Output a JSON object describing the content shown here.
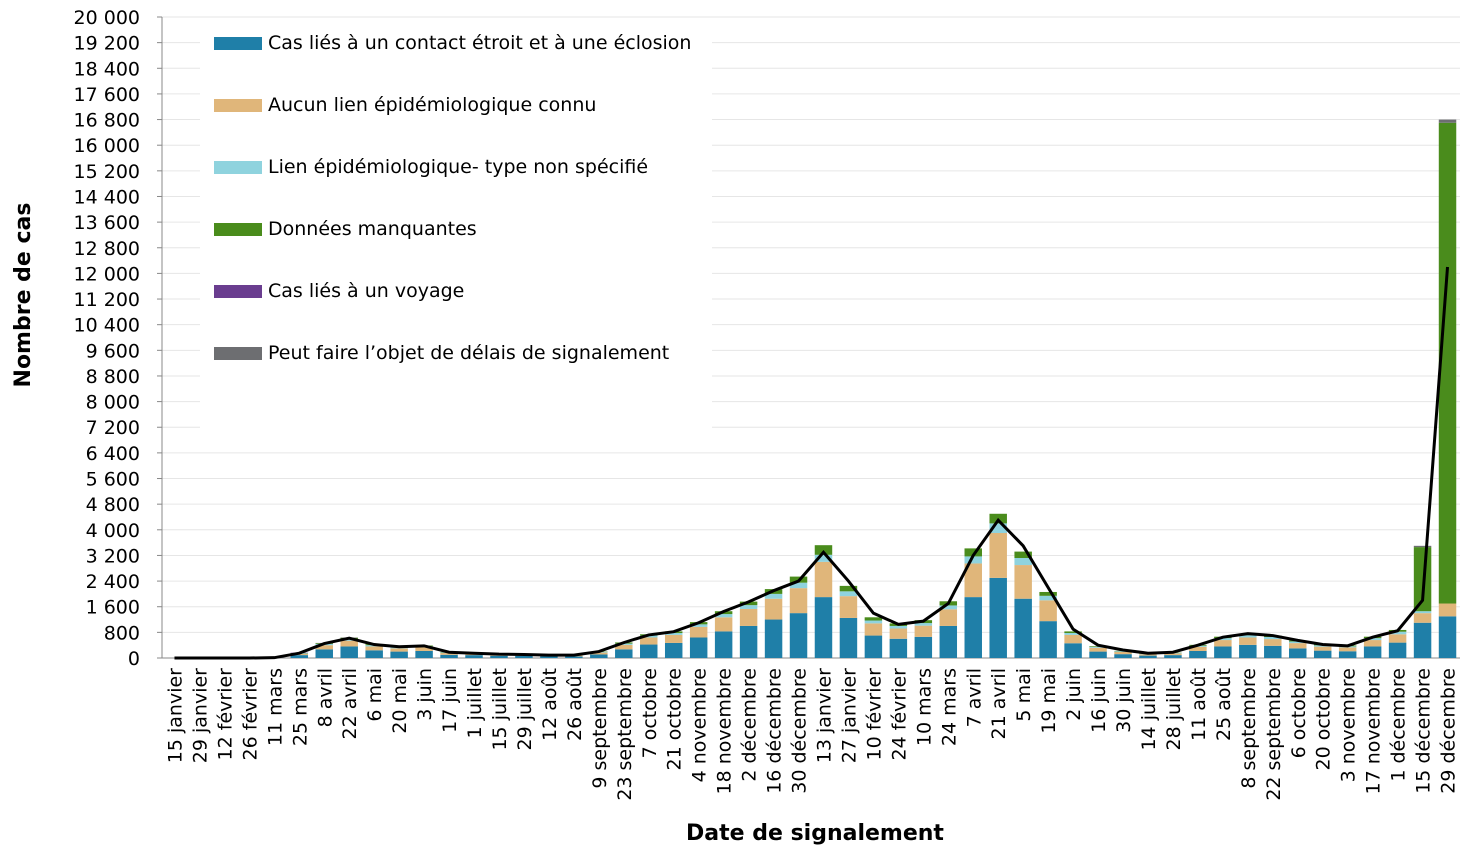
{
  "chart_data": {
    "type": "bar",
    "stacked": true,
    "grid": true,
    "x_label": "Date de signalement",
    "y_label": "Nombre de cas",
    "categories": [
      "15 janvier",
      "29 janvier",
      "12 février",
      "26 février",
      "11 mars",
      "25 mars",
      "8 avril",
      "22 avril",
      "6 mai",
      "20 mai",
      "3 juin",
      "17 juin",
      "1 juillet",
      "15 juillet",
      "29 juillet",
      "12 août",
      "26 août",
      "9 septembre",
      "23 septembre",
      "7 octobre",
      "21 octobre",
      "4 novembre",
      "18 novembre",
      "2 décembre",
      "16 décembre",
      "30 décembre",
      "13 janvier",
      "27 janvier",
      "10 février",
      "24 février",
      "10 mars",
      "24 mars",
      "7 avril",
      "21 avril",
      "5 mai",
      "19 mai",
      "2 juin",
      "16 juin",
      "30 juin",
      "14 juillet",
      "28 juillet",
      "11 août",
      "25 août",
      "8 septembre",
      "22 septembre",
      "6 octobre",
      "20 octobre",
      "3 novembre",
      "17 novembre",
      "1 décembre",
      "15 décembre",
      "29 décembre"
    ],
    "ylim": [
      0,
      20000
    ],
    "yticks": [
      0,
      800,
      {
        "value": 1600,
        "label": "1 600"
      },
      {
        "value": 2400,
        "label": "2 400"
      },
      {
        "value": 3200,
        "label": "3 200"
      },
      {
        "value": 4000,
        "label": "4 000"
      },
      {
        "value": 4800,
        "label": "4 800"
      },
      {
        "value": 5600,
        "label": "5 600"
      },
      {
        "value": 6400,
        "label": "6 400"
      },
      {
        "value": 7200,
        "label": "7 200"
      },
      {
        "value": 8000,
        "label": "8 000"
      },
      {
        "value": 8800,
        "label": "8 800"
      },
      {
        "value": 9600,
        "label": "9 600"
      },
      {
        "value": 10400,
        "label": "10 400"
      },
      {
        "value": 11200,
        "label": "11 200"
      },
      {
        "value": 12000,
        "label": "12 000"
      },
      {
        "value": 12800,
        "label": "12 800"
      },
      {
        "value": 13600,
        "label": "13 600"
      },
      {
        "value": 14400,
        "label": "14 400"
      },
      {
        "value": 15200,
        "label": "15 200"
      },
      {
        "value": 16000,
        "label": "16 000"
      },
      {
        "value": 16800,
        "label": "16 800"
      },
      {
        "value": 17600,
        "label": "17 600"
      },
      {
        "value": 18400,
        "label": "18 400"
      },
      {
        "value": 19200,
        "label": "19 200"
      },
      {
        "value": 20000,
        "label": "20 000"
      }
    ],
    "series": [
      {
        "name": "Cas liés à un contact étroit et à une éclosion",
        "color": "#1f7fa8",
        "values": [
          0,
          0,
          0,
          0,
          6,
          90,
          270,
          360,
          240,
          200,
          220,
          100,
          90,
          70,
          65,
          50,
          50,
          110,
          270,
          420,
          470,
          640,
          830,
          1000,
          1200,
          1400,
          1900,
          1250,
          700,
          600,
          660,
          1000,
          1900,
          2500,
          1850,
          1150,
          460,
          200,
          120,
          75,
          90,
          220,
          360,
          410,
          380,
          300,
          230,
          210,
          360,
          480,
          1100,
          1300
        ]
      },
      {
        "name": "Aucun lien épidémiologique connu",
        "color": "#e0b67a",
        "values": [
          0,
          0,
          0,
          0,
          2,
          40,
          130,
          180,
          120,
          100,
          110,
          55,
          45,
          35,
          35,
          28,
          28,
          60,
          140,
          220,
          250,
          330,
          440,
          530,
          650,
          780,
          1100,
          680,
          380,
          320,
          350,
          520,
          1050,
          1400,
          1050,
          650,
          260,
          120,
          70,
          42,
          50,
          130,
          200,
          230,
          210,
          165,
          125,
          120,
          200,
          260,
          300,
          400
        ]
      },
      {
        "name": "Lien épidémiologique- type non spécifié",
        "color": "#8fd3de",
        "values": [
          0,
          0,
          0,
          0,
          1,
          15,
          40,
          55,
          40,
          30,
          35,
          15,
          12,
          12,
          10,
          8,
          8,
          20,
          40,
          60,
          60,
          80,
          100,
          120,
          150,
          170,
          220,
          150,
          90,
          80,
          80,
          120,
          220,
          300,
          220,
          140,
          60,
          30,
          20,
          12,
          15,
          35,
          60,
          70,
          65,
          50,
          40,
          35,
          60,
          80,
          60,
          0
        ]
      },
      {
        "name": "Données manquantes",
        "color": "#4a8c1c",
        "values": [
          0,
          0,
          0,
          0,
          1,
          10,
          25,
          40,
          30,
          20,
          25,
          12,
          8,
          8,
          6,
          5,
          5,
          12,
          35,
          40,
          50,
          70,
          90,
          110,
          150,
          190,
          300,
          170,
          100,
          80,
          90,
          130,
          250,
          300,
          200,
          120,
          50,
          20,
          12,
          7,
          10,
          25,
          45,
          50,
          45,
          30,
          25,
          25,
          45,
          55,
          2000,
          15000
        ]
      },
      {
        "name": "Cas liés à un voyage",
        "color": "#6a3d8f",
        "values": [
          0,
          0,
          0,
          0,
          5,
          10,
          5,
          5,
          0,
          0,
          0,
          0,
          0,
          0,
          0,
          0,
          0,
          0,
          0,
          0,
          0,
          0,
          0,
          0,
          0,
          0,
          0,
          0,
          0,
          0,
          0,
          0,
          0,
          0,
          0,
          0,
          0,
          0,
          0,
          0,
          0,
          0,
          0,
          0,
          0,
          0,
          0,
          0,
          0,
          0,
          0,
          0
        ]
      },
      {
        "name": "Peut faire l’objet de délais de signalement",
        "color": "#6d6e71",
        "values": [
          0,
          0,
          0,
          0,
          0,
          0,
          0,
          0,
          0,
          0,
          0,
          0,
          0,
          0,
          0,
          0,
          0,
          0,
          0,
          0,
          0,
          0,
          0,
          0,
          0,
          0,
          0,
          0,
          0,
          0,
          0,
          0,
          0,
          0,
          0,
          0,
          0,
          0,
          0,
          0,
          0,
          0,
          0,
          0,
          0,
          0,
          0,
          0,
          0,
          0,
          40,
          100
        ]
      }
    ],
    "trend": {
      "color": "#000000",
      "values": [
        0,
        0,
        0,
        0,
        10,
        150,
        450,
        620,
        420,
        350,
        380,
        180,
        150,
        120,
        110,
        90,
        90,
        200,
        480,
        720,
        820,
        1100,
        1450,
        1750,
        2100,
        2400,
        3300,
        2400,
        1400,
        1050,
        1150,
        1700,
        3200,
        4300,
        3500,
        2200,
        900,
        400,
        250,
        150,
        180,
        400,
        650,
        760,
        700,
        550,
        420,
        380,
        650,
        850,
        1800,
        12200
      ]
    }
  }
}
